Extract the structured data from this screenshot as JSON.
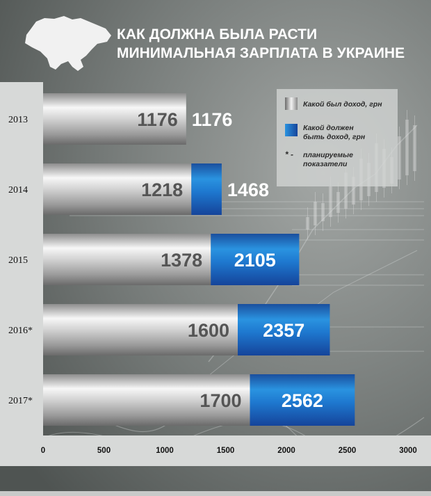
{
  "title_lines": [
    "КАК ДОЛЖНА БЫЛА РАСТИ",
    "МИНИМАЛЬНАЯ ЗАРПЛАТА В УКРАИНЕ"
  ],
  "icons": {
    "logo": "ukraine-map-icon"
  },
  "colors": {
    "background": "#5e6462",
    "gray_bar": "#b8b8b8",
    "blue_bar": "#1b6fc4",
    "panel": "#cfd2d1"
  },
  "legend": {
    "placement": "top-right",
    "items": [
      {
        "lines": [
          "Какой был доход, грн"
        ]
      },
      {
        "lines": [
          "Какой должен",
          "быть доход, грн"
        ]
      }
    ],
    "note_marker": "* -",
    "note_lines": [
      "планируемые",
      "показатели"
    ]
  },
  "chart_data": {
    "type": "bar",
    "orientation": "horizontal",
    "categories": [
      "2013",
      "2014",
      "2015",
      "2016*",
      "2017*"
    ],
    "series": [
      {
        "name": "Какой был доход, грн",
        "values": [
          1176,
          1218,
          1378,
          1600,
          1700
        ]
      },
      {
        "name": "Какой должен быть доход, грн",
        "values": [
          1176,
          1468,
          2105,
          2357,
          2562
        ]
      }
    ],
    "value_labels": {
      "actual": [
        "1176",
        "1218",
        "1378",
        "1600",
        "1700"
      ],
      "expected": [
        "1176",
        "1468",
        "2105",
        "2357",
        "2562"
      ]
    },
    "xlim": [
      0,
      3000
    ],
    "xticks": [
      "0",
      "500",
      "1000",
      "1500",
      "2000",
      "2500",
      "3000"
    ],
    "grid": false
  }
}
